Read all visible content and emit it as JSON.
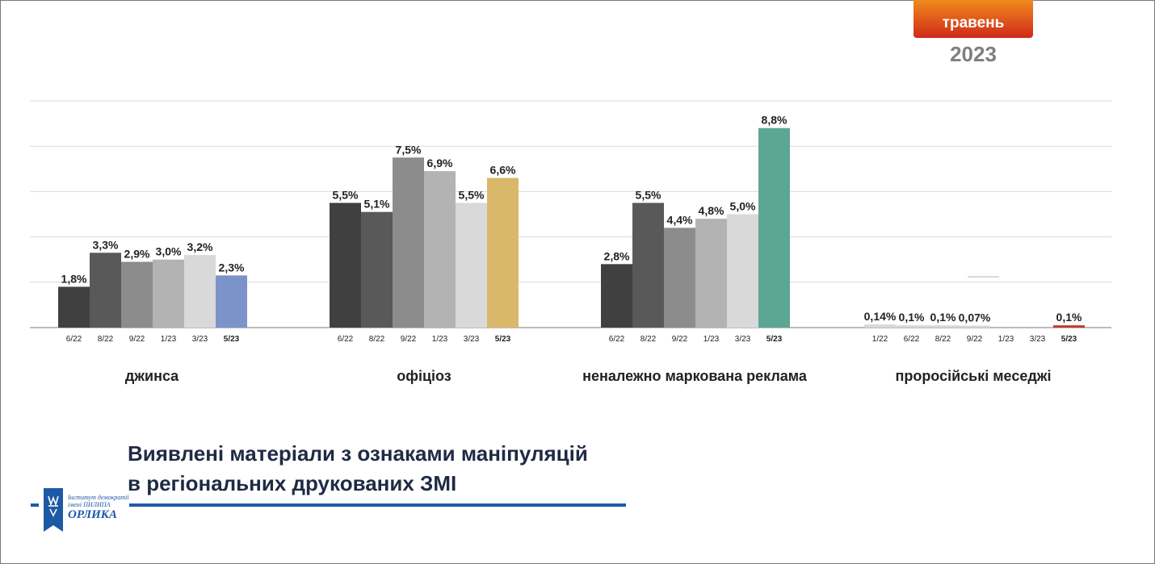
{
  "badge": {
    "month": "травень",
    "year": "2023"
  },
  "title": {
    "line1": "Виявлені матеріали з ознаками маніпуляцій",
    "line2": "в регіональних друкованих ЗМІ"
  },
  "logo": {
    "line1": "Інститут демократії",
    "line2": "імені ПИЛИПА",
    "line3": "ОРЛИКА"
  },
  "chart_data": {
    "type": "bar",
    "ylim": [
      0,
      10
    ],
    "grid": true,
    "groups": [
      {
        "name": "джинса",
        "bars": [
          {
            "period": "6/22",
            "value": 1.8,
            "label": "1,8%",
            "color": "#404040"
          },
          {
            "period": "8/22",
            "value": 3.3,
            "label": "3,3%",
            "color": "#595959"
          },
          {
            "period": "9/22",
            "value": 2.9,
            "label": "2,9%",
            "color": "#8c8c8c"
          },
          {
            "period": "1/23",
            "value": 3.0,
            "label": "3,0%",
            "color": "#b3b3b3"
          },
          {
            "period": "3/23",
            "value": 3.2,
            "label": "3,2%",
            "color": "#d9d9d9"
          },
          {
            "period": "5/23",
            "value": 2.3,
            "label": "2,3%",
            "color": "#7b93c9",
            "current": true
          }
        ]
      },
      {
        "name": "офіціоз",
        "bars": [
          {
            "period": "6/22",
            "value": 5.5,
            "label": "5,5%",
            "color": "#404040"
          },
          {
            "period": "8/22",
            "value": 5.1,
            "label": "5,1%",
            "color": "#595959"
          },
          {
            "period": "9/22",
            "value": 7.5,
            "label": "7,5%",
            "color": "#8c8c8c"
          },
          {
            "period": "1/23",
            "value": 6.9,
            "label": "6,9%",
            "color": "#b3b3b3"
          },
          {
            "period": "3/23",
            "value": 5.5,
            "label": "5,5%",
            "color": "#d9d9d9"
          },
          {
            "period": "5/23",
            "value": 6.6,
            "label": "6,6%",
            "color": "#d9b86a",
            "current": true
          }
        ]
      },
      {
        "name": "неналежно маркована реклама",
        "bars": [
          {
            "period": "6/22",
            "value": 2.8,
            "label": "2,8%",
            "color": "#404040"
          },
          {
            "period": "8/22",
            "value": 5.5,
            "label": "5,5%",
            "color": "#595959"
          },
          {
            "period": "9/22",
            "value": 4.4,
            "label": "4,4%",
            "color": "#8c8c8c"
          },
          {
            "period": "1/23",
            "value": 4.8,
            "label": "4,8%",
            "color": "#b3b3b3"
          },
          {
            "period": "3/23",
            "value": 5.0,
            "label": "5,0%",
            "color": "#d9d9d9"
          },
          {
            "period": "5/23",
            "value": 8.8,
            "label": "8,8%",
            "color": "#5ca695",
            "current": true
          }
        ]
      },
      {
        "name": "проросійські меседжі",
        "bars": [
          {
            "period": "1/22",
            "value": 0.14,
            "label": "0,14%",
            "color": "#d9d9d9"
          },
          {
            "period": "6/22",
            "value": 0.1,
            "label": "0,1%",
            "color": "#d9d9d9"
          },
          {
            "period": "8/22",
            "value": 0.1,
            "label": "0,1%",
            "color": "#d9d9d9"
          },
          {
            "period": "9/22",
            "value": 0.07,
            "label": "0,07%",
            "color": "#d9d9d9"
          },
          {
            "period": "1/23",
            "value": 0,
            "label": "",
            "color": "#d9d9d9"
          },
          {
            "period": "3/23",
            "value": 0,
            "label": "",
            "color": "#d9d9d9"
          },
          {
            "period": "5/23",
            "value": 0.1,
            "label": "0,1%",
            "color": "#c0392b",
            "current": true
          }
        ]
      }
    ]
  }
}
